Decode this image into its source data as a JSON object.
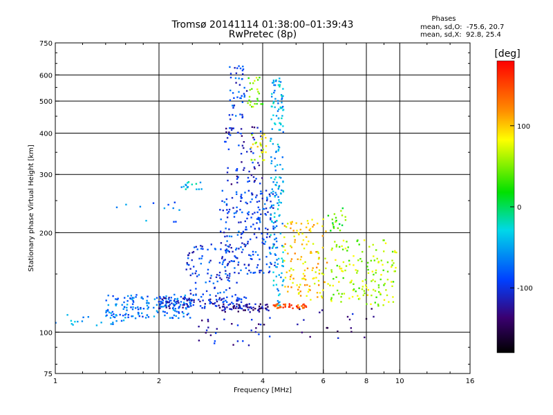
{
  "chart_data": {
    "type": "scatter",
    "title": "Tromsø 20141114 01:38:00–01:39:43",
    "subtitle": "RwPretec (8p)",
    "xlabel": "Frequency [MHz]",
    "ylabel": "Stationary phase Virtual Height [km]",
    "x_scale": "log",
    "y_scale": "log",
    "xlim": [
      1,
      16
    ],
    "ylim": [
      75,
      750
    ],
    "x_ticks": [
      "1",
      "2",
      "4",
      "6",
      "8",
      "10",
      "16"
    ],
    "y_ticks": [
      "75",
      "100",
      "200",
      "300",
      "400",
      "500",
      "600",
      "750"
    ],
    "grid": true,
    "phases": {
      "heading": "Phases",
      "line_o": "mean, sd,O:  -75.6, 20.7",
      "line_x": "mean, sd,X:  92.8, 25.4"
    },
    "colorbar": {
      "label": "[deg]",
      "range": [
        -180,
        180
      ],
      "ticks": [
        "100",
        "0",
        "-100"
      ],
      "tick_values": [
        100,
        0,
        -100
      ]
    },
    "clusters": [
      {
        "x": [
          1.0,
          1.6
        ],
        "y": [
          104,
          114
        ],
        "phase": -55,
        "n": 22
      },
      {
        "x": [
          1.4,
          2.5
        ],
        "y": [
          110,
          130
        ],
        "phase": -70,
        "n": 170
      },
      {
        "x": [
          2.0,
          3.6
        ],
        "y": [
          118,
          128
        ],
        "phase": -105,
        "n": 110
      },
      {
        "x": [
          3.0,
          4.2
        ],
        "y": [
          115,
          122
        ],
        "phase": -125,
        "n": 60
      },
      {
        "x": [
          2.4,
          3.4
        ],
        "y": [
          128,
          185
        ],
        "phase": -95,
        "n": 90
      },
      {
        "x": [
          3.0,
          4.4
        ],
        "y": [
          150,
          270
        ],
        "phase": -90,
        "n": 220
      },
      {
        "x": [
          3.2,
          3.6
        ],
        "y": [
          440,
          640
        ],
        "phase": -90,
        "n": 45
      },
      {
        "x": [
          3.1,
          4.0
        ],
        "y": [
          280,
          420
        ],
        "phase": -110,
        "n": 70
      },
      {
        "x": [
          4.2,
          4.6
        ],
        "y": [
          120,
          600
        ],
        "phase": -45,
        "n": 170
      },
      {
        "x": [
          4.6,
          6.2
        ],
        "y": [
          125,
          220
        ],
        "phase": 95,
        "n": 130
      },
      {
        "x": [
          4.3,
          5.4
        ],
        "y": [
          118,
          122
        ],
        "phase": 145,
        "n": 40
      },
      {
        "x": [
          6.2,
          9.8
        ],
        "y": [
          120,
          190
        ],
        "phase": 60,
        "n": 150
      },
      {
        "x": [
          3.6,
          4.0
        ],
        "y": [
          480,
          590
        ],
        "phase": 50,
        "n": 25
      },
      {
        "x": [
          3.7,
          4.1
        ],
        "y": [
          330,
          400
        ],
        "phase": 75,
        "n": 25
      },
      {
        "x": [
          6.2,
          7.0
        ],
        "y": [
          200,
          240
        ],
        "phase": 35,
        "n": 20
      },
      {
        "x": [
          1.5,
          2.3
        ],
        "y": [
          215,
          250
        ],
        "phase": -70,
        "n": 12
      },
      {
        "x": [
          2.3,
          2.7
        ],
        "y": [
          270,
          290
        ],
        "phase": -40,
        "n": 16
      },
      {
        "x": [
          2.6,
          4.2
        ],
        "y": [
          90,
          112
        ],
        "phase": -115,
        "n": 30
      },
      {
        "x": [
          5.0,
          8.5
        ],
        "y": [
          95,
          118
        ],
        "phase": -130,
        "n": 20
      }
    ]
  }
}
